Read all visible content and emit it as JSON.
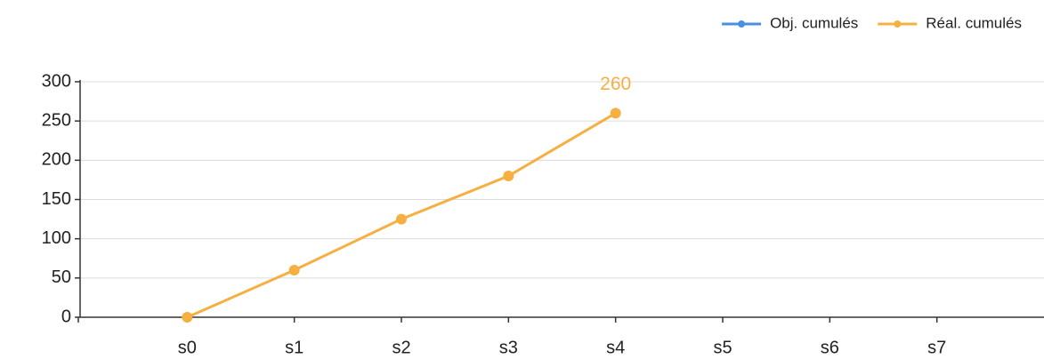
{
  "chart_data": {
    "type": "line",
    "categories": [
      "s0",
      "s1",
      "s2",
      "s3",
      "s4",
      "s5",
      "s6",
      "s7"
    ],
    "series": [
      {
        "name": "Obj. cumulés",
        "color": "#4a90e2",
        "values": [
          null,
          null,
          null,
          null,
          null,
          null,
          null,
          null
        ]
      },
      {
        "name": "Réal. cumulés",
        "color": "#f5b041",
        "values": [
          0,
          60,
          125,
          180,
          260,
          null,
          null,
          null
        ],
        "value_labels": [
          null,
          null,
          null,
          null,
          "260",
          null,
          null,
          null
        ]
      }
    ],
    "ylim": [
      0,
      300
    ],
    "yticks": [
      0,
      50,
      100,
      150,
      200,
      250,
      300
    ],
    "grid": true,
    "legend": "top-right"
  }
}
